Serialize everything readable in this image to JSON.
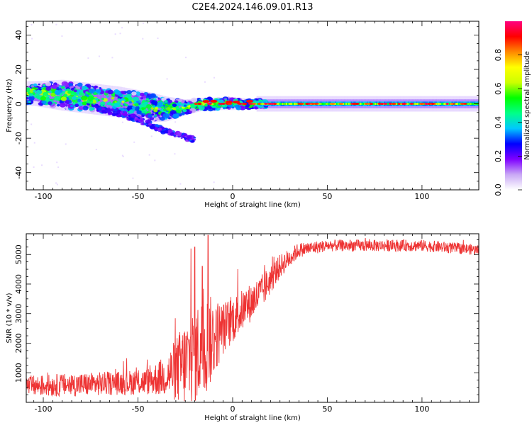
{
  "title": "C2E4.2024.146.09.01.R13",
  "chart_data": [
    {
      "type": "heatmap",
      "xlabel": "Height of straight line (km)",
      "ylabel": "Frequency (Hz)",
      "xlim": [
        -109,
        130
      ],
      "ylim": [
        -50,
        48
      ],
      "x_ticks": [
        -100,
        -50,
        0,
        50,
        100
      ],
      "y_ticks": [
        -40,
        -20,
        0,
        20,
        40
      ],
      "colorbar": {
        "label": "Normalized spectral amplitude",
        "range": [
          0,
          1
        ],
        "ticks": [
          0.0,
          0.2,
          0.4,
          0.6,
          0.8
        ],
        "colors": [
          "#ffffff",
          "#c9a8f5",
          "#7f00ff",
          "#0000ff",
          "#00c8ff",
          "#00ff88",
          "#00ff00",
          "#ccff00",
          "#ffff00",
          "#ff8800",
          "#ff0000",
          "#ff0080"
        ]
      },
      "band_centerline": [
        {
          "x": -105,
          "f": 6,
          "width": 8
        },
        {
          "x": -90,
          "f": 5,
          "width": 10
        },
        {
          "x": -75,
          "f": 3,
          "width": 10
        },
        {
          "x": -60,
          "f": 1,
          "width": 10
        },
        {
          "x": -45,
          "f": -2,
          "width": 10
        },
        {
          "x": -35,
          "f": -3,
          "width": 8
        },
        {
          "x": -25,
          "f": -2,
          "width": 5
        },
        {
          "x": -15,
          "f": 0,
          "width": 4
        },
        {
          "x": 0,
          "f": 0,
          "width": 4
        },
        {
          "x": 15,
          "f": 0,
          "width": 3
        },
        {
          "x": 130,
          "f": 0,
          "width": 3
        }
      ],
      "drift_branch": [
        {
          "x": -70,
          "f": -3
        },
        {
          "x": -55,
          "f": -7
        },
        {
          "x": -40,
          "f": -14
        },
        {
          "x": -20,
          "f": -21
        }
      ]
    },
    {
      "type": "line",
      "xlabel": "Height of straight line (km)",
      "ylabel": "SNR (10 * v/v)",
      "xlim": [
        -109,
        130
      ],
      "ylim": [
        0,
        5700
      ],
      "x_ticks": [
        -100,
        -50,
        0,
        50,
        100
      ],
      "y_ticks": [
        1000,
        2000,
        3000,
        4000,
        5000
      ],
      "color": "#ee3333",
      "envelope": [
        {
          "x": -109,
          "mean": 550,
          "spread": 350
        },
        {
          "x": -80,
          "mean": 600,
          "spread": 400
        },
        {
          "x": -60,
          "mean": 650,
          "spread": 400
        },
        {
          "x": -45,
          "mean": 700,
          "spread": 450
        },
        {
          "x": -35,
          "mean": 900,
          "spread": 700
        },
        {
          "x": -25,
          "mean": 1300,
          "spread": 1500
        },
        {
          "x": -15,
          "mean": 1900,
          "spread": 1800
        },
        {
          "x": -5,
          "mean": 2500,
          "spread": 900
        },
        {
          "x": 5,
          "mean": 3100,
          "spread": 700
        },
        {
          "x": 15,
          "mean": 3700,
          "spread": 600
        },
        {
          "x": 25,
          "mean": 4600,
          "spread": 400
        },
        {
          "x": 35,
          "mean": 5150,
          "spread": 250
        },
        {
          "x": 50,
          "mean": 5300,
          "spread": 200
        },
        {
          "x": 100,
          "mean": 5300,
          "spread": 200
        },
        {
          "x": 130,
          "mean": 5150,
          "spread": 180
        }
      ],
      "peaks": [
        {
          "x": -22,
          "y": 5200
        },
        {
          "x": -20,
          "y": 5250
        },
        {
          "x": -13,
          "y": 5650
        },
        {
          "x": -16,
          "y": 4600
        }
      ]
    }
  ]
}
